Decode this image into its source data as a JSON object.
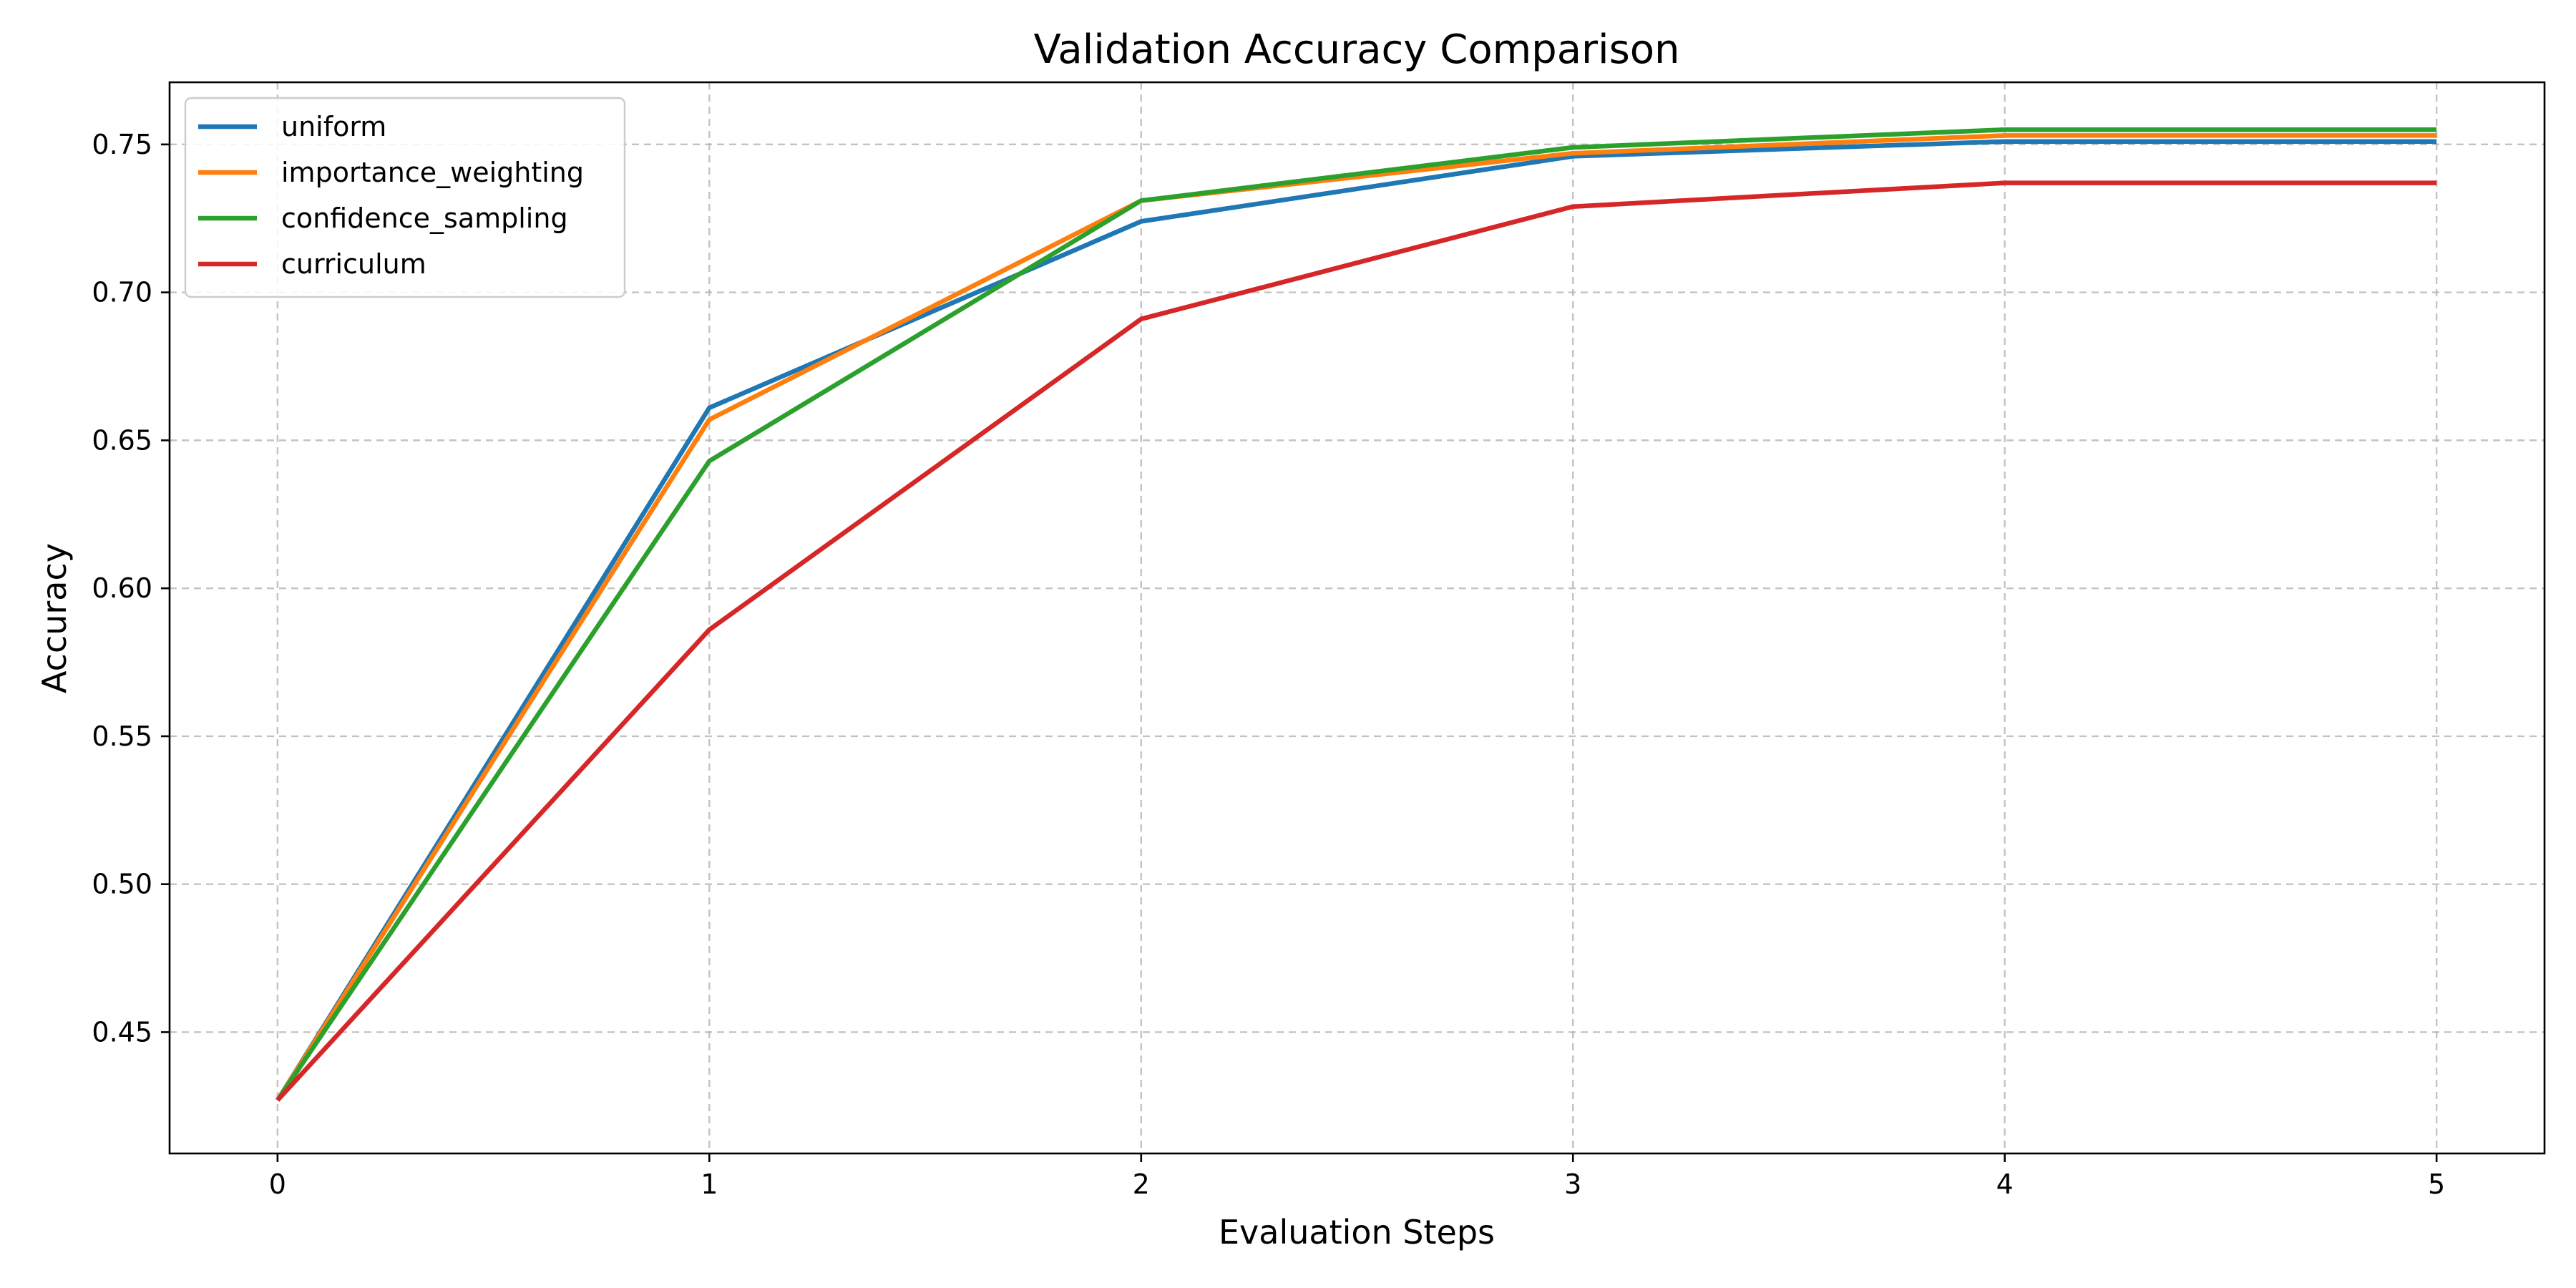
{
  "chart_data": {
    "type": "line",
    "title": "Validation Accuracy Comparison",
    "xlabel": "Evaluation Steps",
    "ylabel": "Accuracy",
    "x": [
      0,
      1,
      2,
      3,
      4,
      5
    ],
    "x_ticks": [
      "0",
      "1",
      "2",
      "3",
      "4",
      "5"
    ],
    "y_ticks": [
      "0.45",
      "0.50",
      "0.55",
      "0.60",
      "0.65",
      "0.70",
      "0.75"
    ],
    "xlim": [
      -0.25,
      5.25
    ],
    "ylim": [
      0.409,
      0.771
    ],
    "grid": true,
    "legend_position": "top-left",
    "series": [
      {
        "name": "uniform",
        "color": "#1f77b4",
        "values": [
          0.427,
          0.661,
          0.724,
          0.746,
          0.751,
          0.751
        ]
      },
      {
        "name": "importance_weighting",
        "color": "#ff7f0e",
        "values": [
          0.427,
          0.657,
          0.731,
          0.747,
          0.753,
          0.753
        ]
      },
      {
        "name": "confidence_sampling",
        "color": "#2ca02c",
        "values": [
          0.427,
          0.643,
          0.731,
          0.749,
          0.755,
          0.755
        ]
      },
      {
        "name": "curriculum",
        "color": "#d62728",
        "values": [
          0.427,
          0.586,
          0.691,
          0.729,
          0.737,
          0.737
        ]
      }
    ]
  }
}
